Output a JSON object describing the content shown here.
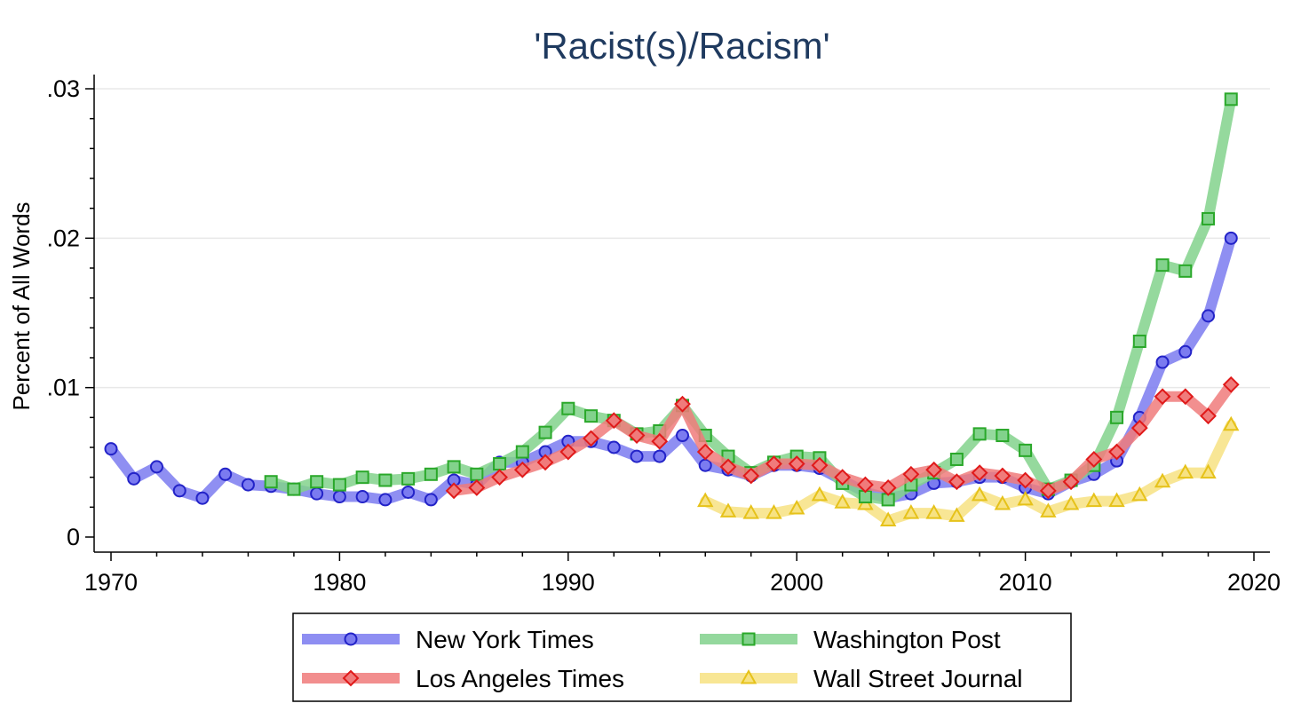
{
  "chart_data": {
    "type": "line",
    "title": "'Racist(s)/Racism'",
    "xlabel": "",
    "ylabel": "Percent of All Words",
    "xlim": [
      1970,
      2020
    ],
    "ylim": [
      0,
      0.031
    ],
    "x_ticks": [
      1970,
      1980,
      1990,
      2000,
      2010,
      2020
    ],
    "x_tick_labels": [
      "1970",
      "1980",
      "1990",
      "2000",
      "2010",
      "2020"
    ],
    "y_ticks": [
      0,
      0.01,
      0.02,
      0.03
    ],
    "y_tick_labels": [
      "0",
      ".01",
      ".02",
      ".03"
    ],
    "grid": true,
    "legend_position": "bottom",
    "series": [
      {
        "name": "New York Times",
        "color": "#7b7bf0",
        "marker_color": "#2323c8",
        "marker": "circle",
        "x": [
          1970,
          1971,
          1972,
          1973,
          1974,
          1975,
          1976,
          1977,
          1978,
          1979,
          1980,
          1981,
          1982,
          1983,
          1984,
          1985,
          1986,
          1987,
          1988,
          1989,
          1990,
          1991,
          1992,
          1993,
          1994,
          1995,
          1996,
          1997,
          1998,
          1999,
          2000,
          2001,
          2002,
          2003,
          2004,
          2005,
          2006,
          2007,
          2008,
          2009,
          2010,
          2011,
          2012,
          2013,
          2014,
          2015,
          2016,
          2017,
          2018,
          2019
        ],
        "y": [
          0.0059,
          0.0039,
          0.0047,
          0.0031,
          0.0026,
          0.0042,
          0.0035,
          0.0034,
          0.0032,
          0.0029,
          0.0027,
          0.0027,
          0.0025,
          0.003,
          0.0025,
          0.0038,
          0.0035,
          0.005,
          0.005,
          0.0057,
          0.0064,
          0.0064,
          0.006,
          0.0054,
          0.0054,
          0.0068,
          0.0048,
          0.0045,
          0.0041,
          0.0048,
          0.0048,
          0.0046,
          0.0038,
          0.003,
          0.0026,
          0.0029,
          0.0036,
          0.0037,
          0.004,
          0.004,
          0.0033,
          0.0029,
          0.0037,
          0.0042,
          0.0051,
          0.008,
          0.0117,
          0.0124,
          0.0148,
          0.02
        ]
      },
      {
        "name": "Los Angeles Times",
        "color": "#f07b7b",
        "marker_color": "#e01a1a",
        "marker": "diamond",
        "x": [
          1985,
          1986,
          1987,
          1988,
          1989,
          1990,
          1991,
          1992,
          1993,
          1994,
          1995,
          1996,
          1997,
          1998,
          1999,
          2000,
          2001,
          2002,
          2003,
          2004,
          2005,
          2006,
          2007,
          2008,
          2009,
          2010,
          2011,
          2012,
          2013,
          2014,
          2015,
          2016,
          2017,
          2018,
          2019
        ],
        "y": [
          0.0031,
          0.0033,
          0.004,
          0.0045,
          0.005,
          0.0057,
          0.0066,
          0.0078,
          0.0068,
          0.0064,
          0.0089,
          0.0057,
          0.0047,
          0.0041,
          0.0049,
          0.0049,
          0.0048,
          0.004,
          0.0035,
          0.0033,
          0.0042,
          0.0045,
          0.0037,
          0.0043,
          0.0041,
          0.0038,
          0.0031,
          0.0037,
          0.0052,
          0.0057,
          0.0073,
          0.0094,
          0.0094,
          0.0081,
          0.0102
        ]
      },
      {
        "name": "Washington Post",
        "color": "#82d28c",
        "marker_color": "#2aa82a",
        "marker": "square",
        "x": [
          1977,
          1978,
          1979,
          1980,
          1981,
          1982,
          1983,
          1984,
          1985,
          1986,
          1987,
          1988,
          1989,
          1990,
          1991,
          1992,
          1993,
          1994,
          1995,
          1996,
          1997,
          1998,
          1999,
          2000,
          2001,
          2002,
          2003,
          2004,
          2005,
          2006,
          2007,
          2008,
          2009,
          2010,
          2011,
          2012,
          2013,
          2014,
          2015,
          2016,
          2017,
          2018,
          2019
        ],
        "y": [
          0.0037,
          0.0032,
          0.0037,
          0.0035,
          0.004,
          0.0038,
          0.0039,
          0.0042,
          0.0047,
          0.0042,
          0.0049,
          0.0057,
          0.007,
          0.0086,
          0.0081,
          0.0078,
          0.0069,
          0.0071,
          0.0088,
          0.0068,
          0.0054,
          0.0043,
          0.005,
          0.0054,
          0.0053,
          0.0036,
          0.0027,
          0.0025,
          0.0035,
          0.0043,
          0.0052,
          0.0069,
          0.0068,
          0.0058,
          0.0032,
          0.0038,
          0.0048,
          0.008,
          0.0131,
          0.0182,
          0.0178,
          0.0213,
          0.0293
        ]
      },
      {
        "name": "Wall Street Journal",
        "color": "#f7e282",
        "marker_color": "#e6c21a",
        "marker": "triangle",
        "x": [
          1996,
          1997,
          1998,
          1999,
          2000,
          2001,
          2002,
          2003,
          2004,
          2005,
          2006,
          2007,
          2008,
          2009,
          2010,
          2011,
          2012,
          2013,
          2014,
          2015,
          2016,
          2017,
          2018,
          2019
        ],
        "y": [
          0.0024,
          0.0017,
          0.0016,
          0.0016,
          0.0019,
          0.0028,
          0.0023,
          0.0022,
          0.0011,
          0.0016,
          0.0016,
          0.0014,
          0.0028,
          0.0022,
          0.0025,
          0.0017,
          0.0022,
          0.0024,
          0.0024,
          0.0028,
          0.0037,
          0.0043,
          0.0043,
          0.0075
        ]
      }
    ]
  }
}
